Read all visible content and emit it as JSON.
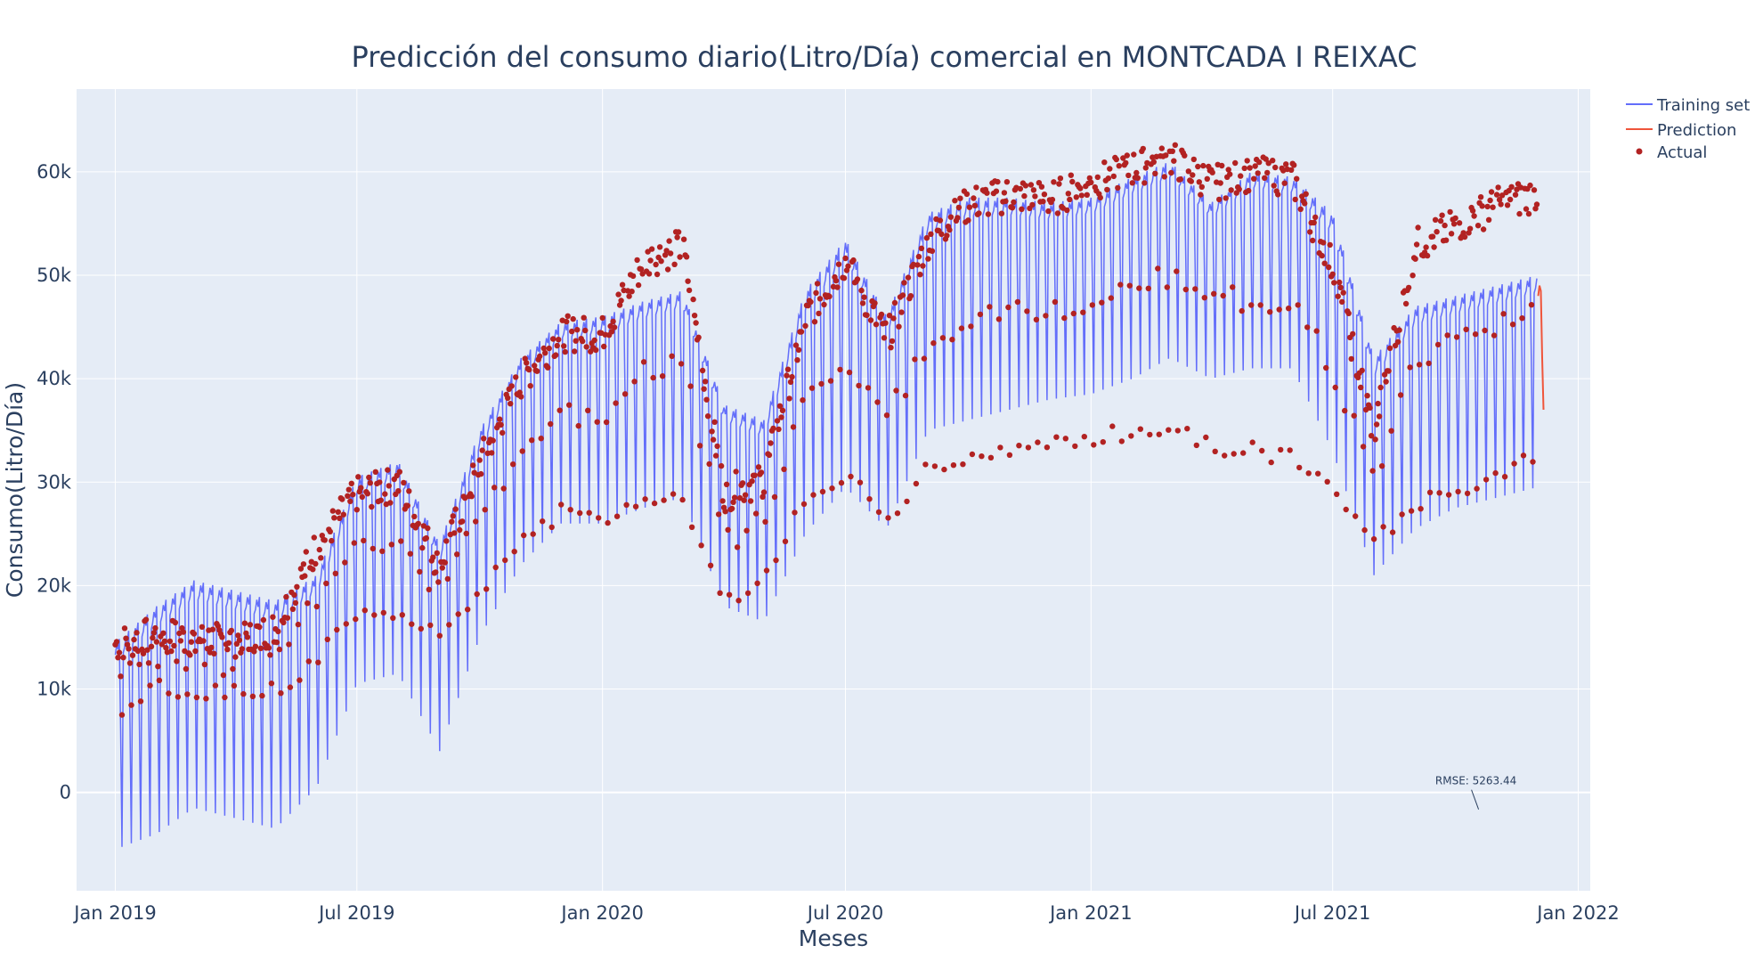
{
  "chart_data": {
    "type": "line",
    "title": "Predicción del consumo diario(Litro/Día) comercial en MONTCADA I REIXAC",
    "xlabel": "Meses",
    "ylabel": "Consumo(Litro/Día)",
    "x_range": [
      "2018-12-03",
      "2022-01-10"
    ],
    "ylim": [
      -9500,
      68000
    ],
    "x_ticks": [
      {
        "date": "2019-01-01",
        "label": "Jan 2019"
      },
      {
        "date": "2019-07-01",
        "label": "Jul 2019"
      },
      {
        "date": "2020-01-01",
        "label": "Jan 2020"
      },
      {
        "date": "2020-07-01",
        "label": "Jul 2020"
      },
      {
        "date": "2021-01-01",
        "label": "Jan 2021"
      },
      {
        "date": "2021-07-01",
        "label": "Jul 2021"
      },
      {
        "date": "2022-01-01",
        "label": "Jan 2022"
      }
    ],
    "y_ticks": [
      {
        "value": 0,
        "label": "0"
      },
      {
        "value": 10000,
        "label": "10k"
      },
      {
        "value": 20000,
        "label": "20k"
      },
      {
        "value": 30000,
        "label": "30k"
      },
      {
        "value": 40000,
        "label": "40k"
      },
      {
        "value": 50000,
        "label": "50k"
      },
      {
        "value": 60000,
        "label": "60k"
      }
    ],
    "grid": true,
    "legend_position": "top-right outside",
    "series": [
      {
        "name": "Training set",
        "type": "line",
        "color": "#636efa",
        "weekly_cycle": true,
        "x": [
          "2019-01-01",
          "2019-02-01",
          "2019-03-01",
          "2019-04-01",
          "2019-05-01",
          "2019-06-01",
          "2019-07-01",
          "2019-08-01",
          "2019-09-01",
          "2019-10-01",
          "2019-11-01",
          "2019-12-01",
          "2020-01-01",
          "2020-02-01",
          "2020-03-01",
          "2020-04-01",
          "2020-05-01",
          "2020-06-01",
          "2020-07-01",
          "2020-08-01",
          "2020-09-01",
          "2020-10-01",
          "2020-11-01",
          "2020-12-01",
          "2021-01-01",
          "2021-02-01",
          "2021-03-01",
          "2021-04-01",
          "2021-05-01",
          "2021-06-01",
          "2021-07-01",
          "2021-08-01",
          "2021-09-01",
          "2021-10-01",
          "2021-11-01",
          "2021-12-01"
        ],
        "weekday_peak": [
          14500,
          18000,
          20500,
          19500,
          18500,
          21000,
          30500,
          32000,
          24000,
          35000,
          42000,
          45500,
          46000,
          47500,
          48500,
          37500,
          36000,
          48500,
          53500,
          46000,
          56000,
          57500,
          57500,
          57000,
          57500,
          59500,
          61000,
          57000,
          60000,
          59500,
          56000,
          42000,
          47000,
          48000,
          49000,
          50000
        ],
        "weekend_trough": [
          -5500,
          -4000,
          -1500,
          -2500,
          -3500,
          500,
          10500,
          11500,
          4000,
          15000,
          22000,
          26000,
          26000,
          27500,
          28500,
          18000,
          16500,
          25000,
          29500,
          25500,
          35000,
          36000,
          37000,
          38000,
          38500,
          40000,
          42000,
          40000,
          41000,
          41000,
          33000,
          21000,
          25500,
          27500,
          28500,
          29500
        ]
      },
      {
        "name": "Prediction",
        "type": "line",
        "color": "#ef553b",
        "x": [
          "2021-12-02",
          "2021-12-03",
          "2021-12-04",
          "2021-12-05",
          "2021-12-06"
        ],
        "values": [
          48000,
          49000,
          48500,
          42000,
          37000
        ]
      },
      {
        "name": "Actual",
        "type": "scatter",
        "color": "#b22222",
        "x": [
          "2019-01-01",
          "2019-02-01",
          "2019-03-01",
          "2019-04-01",
          "2019-05-01",
          "2019-06-01",
          "2019-07-01",
          "2019-08-01",
          "2019-09-01",
          "2019-10-01",
          "2019-11-01",
          "2019-12-01",
          "2020-01-01",
          "2020-02-01",
          "2020-03-01",
          "2020-04-01",
          "2020-05-01",
          "2020-06-01",
          "2020-07-01",
          "2020-08-01",
          "2020-09-01",
          "2020-10-01",
          "2020-11-01",
          "2020-12-01",
          "2021-01-01",
          "2021-02-01",
          "2021-03-01",
          "2021-04-01",
          "2021-05-01",
          "2021-06-01",
          "2021-07-01",
          "2021-08-01",
          "2021-09-01",
          "2021-10-01",
          "2021-11-01",
          "2021-12-01"
        ],
        "weekday_level": [
          14500,
          15500,
          15000,
          15000,
          16000,
          24000,
          29000,
          30000,
          22000,
          32000,
          40000,
          44500,
          44500,
          51500,
          53000,
          29000,
          30500,
          46000,
          51500,
          44000,
          53500,
          57000,
          58000,
          57500,
          59000,
          60500,
          61500,
          59000,
          60000,
          59500,
          51000,
          35000,
          53000,
          55000,
          57000,
          58000
        ],
        "weekend_level": [
          7000,
          10000,
          9500,
          9500,
          10000,
          13000,
          17000,
          17500,
          16000,
          19000,
          25000,
          27000,
          26500,
          28000,
          28500,
          18500,
          21000,
          28000,
          31000,
          26000,
          31500,
          32500,
          33000,
          33500,
          34000,
          35000,
          35500,
          33500,
          33000,
          32500,
          29000,
          24000,
          28000,
          29000,
          31000,
          33000
        ]
      }
    ],
    "annotations": [
      {
        "text": "RMSE: 5263.44",
        "x": "2021-10-05",
        "y": 600
      }
    ]
  }
}
